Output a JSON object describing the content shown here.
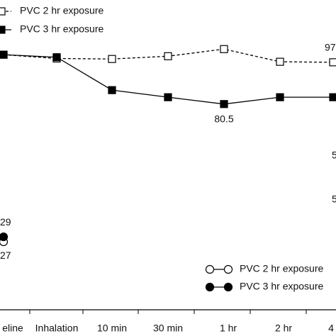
{
  "chart_data": [
    {
      "type": "line",
      "ylim": [
        65.6,
        121.6
      ],
      "legend": "top-left",
      "series": [
        {
          "name": "PVC 2 hr exposure",
          "color": "#000000",
          "marker": "open-square",
          "dashed": true,
          "values": [
            100,
            98.5,
            98.3,
            99.4,
            102.2,
            97.2,
            97
          ],
          "value_labels": [
            null,
            null,
            null,
            null,
            null,
            null,
            "97"
          ]
        },
        {
          "name": "PVC 3 hr exposure",
          "color": "#000000",
          "marker": "filled-square",
          "dashed": false,
          "values": [
            100,
            99,
            86,
            83.2,
            80.5,
            83.2,
            83.2
          ],
          "value_labels": [
            null,
            null,
            null,
            null,
            "80.5",
            null,
            null
          ]
        }
      ]
    },
    {
      "type": "line",
      "ylim": [
        1.6,
        67.3
      ],
      "legend": "bottom-right",
      "categories": [
        "eline",
        "Inhalation",
        "10 min",
        "30 min",
        "1 hr",
        "2 hr",
        "4"
      ],
      "annotations": [
        "5",
        "5"
      ],
      "series": [
        {
          "name": "PVC 2 hr exposure",
          "color": "#000000",
          "marker": "open-circle",
          "dashed": false,
          "values": [
            27,
            null,
            null,
            null,
            null,
            null,
            null
          ],
          "value_labels": [
            "27",
            null,
            null,
            null,
            null,
            null,
            null
          ]
        },
        {
          "name": "PVC 3 hr exposure",
          "color": "#000000",
          "marker": "filled-circle",
          "dashed": false,
          "values": [
            29,
            null,
            null,
            null,
            null,
            null,
            null
          ],
          "value_labels": [
            "29",
            null,
            null,
            null,
            null,
            null,
            null
          ]
        }
      ]
    }
  ]
}
